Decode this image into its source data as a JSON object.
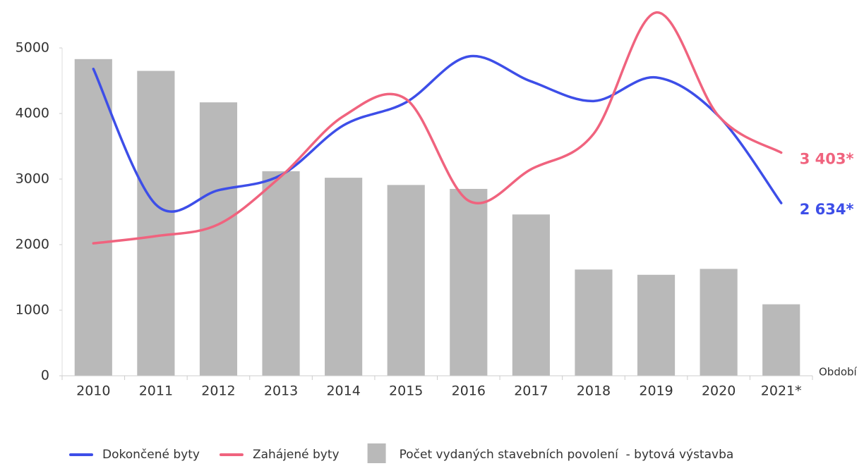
{
  "chart_data": {
    "type": "bar-line",
    "categories": [
      "2010",
      "2011",
      "2012",
      "2013",
      "2014",
      "2015",
      "2016",
      "2017",
      "2018",
      "2019",
      "2020",
      "2021*"
    ],
    "x_label": "Období",
    "ylim": [
      0,
      5000
    ],
    "yticks": [
      0,
      1000,
      2000,
      3000,
      4000,
      5000
    ],
    "series": [
      {
        "name": "Dokončené byty",
        "type": "line",
        "color": "#3d4ee8",
        "values": [
          4680,
          2610,
          2830,
          3060,
          3820,
          4170,
          4870,
          4490,
          4190,
          4550,
          3960,
          2634
        ],
        "value_labels": [
          null,
          null,
          null,
          null,
          null,
          null,
          null,
          null,
          null,
          null,
          null,
          "2 634*"
        ]
      },
      {
        "name": "Zahájené byty",
        "type": "line",
        "color": "#f0637e",
        "values": [
          2020,
          2130,
          2310,
          3040,
          3960,
          4220,
          2670,
          3150,
          3690,
          5540,
          3960,
          3403
        ],
        "value_labels": [
          null,
          null,
          null,
          null,
          null,
          null,
          null,
          null,
          null,
          null,
          null,
          "3 403*"
        ]
      },
      {
        "name": "Počet vydaných stavebních povolení  - bytová výstavba",
        "type": "bar",
        "color": "#b9b9b9",
        "values": [
          4830,
          4650,
          4170,
          3120,
          3020,
          2910,
          2850,
          2460,
          1620,
          1540,
          1630,
          1090
        ]
      }
    ]
  }
}
